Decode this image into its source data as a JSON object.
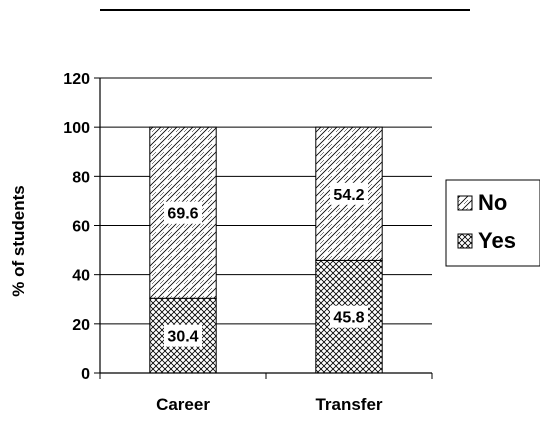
{
  "chart_data": {
    "type": "bar",
    "stacked": true,
    "categories": [
      "Career",
      "Transfer"
    ],
    "series": [
      {
        "name": "Yes",
        "values": [
          30.4,
          45.8
        ],
        "pattern": "crosshatch-fine"
      },
      {
        "name": "No",
        "values": [
          69.6,
          54.2
        ],
        "pattern": "diagonal-hatch"
      }
    ],
    "data_labels": [
      [
        "30.4",
        "45.8"
      ],
      [
        "69.6",
        "54.2"
      ]
    ],
    "ylabel": "% of students",
    "xlabel": "",
    "ylim": [
      0,
      120
    ],
    "yticks": [
      0,
      20,
      40,
      60,
      80,
      100,
      120
    ],
    "grid": true,
    "legend": {
      "position": "right",
      "entries": [
        "No",
        "Yes"
      ]
    }
  }
}
